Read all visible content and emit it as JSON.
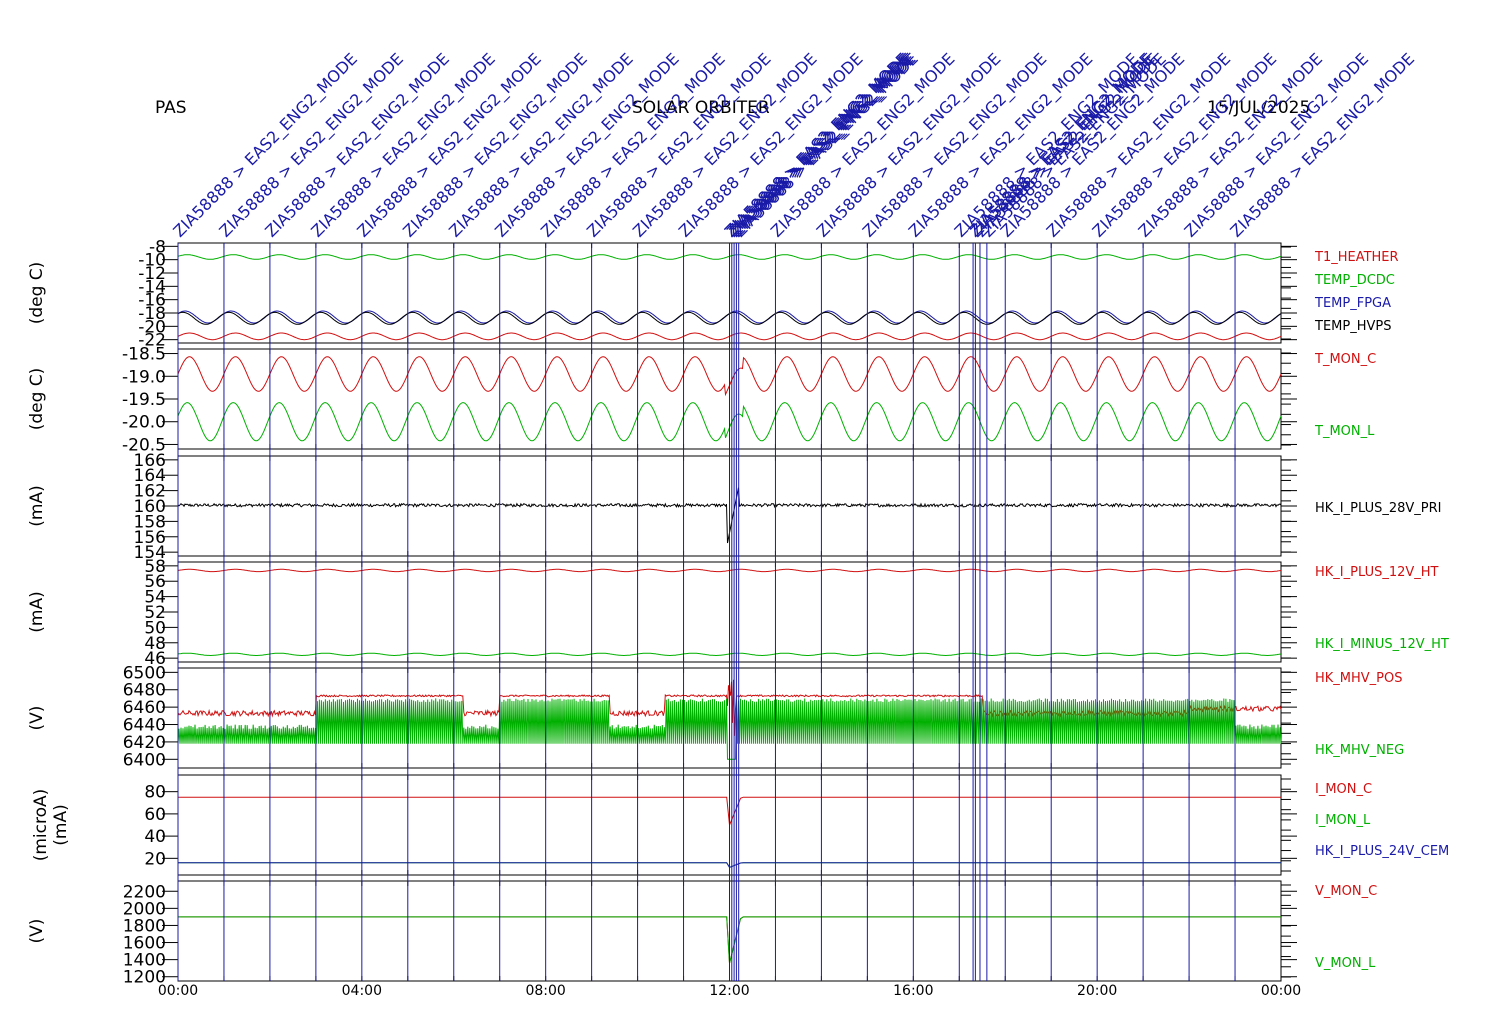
{
  "header": {
    "left": "PAS",
    "center": "SOLAR ORBITER",
    "right": "15/JUL/2025"
  },
  "colors": {
    "red": "#d01010",
    "green": "#00b000",
    "blue": "#1a1aa8",
    "black": "#000000",
    "event_line": "#1a1aa8"
  },
  "events": {
    "common_label": "ZIA58888 > EAS2_ENG2_MODE",
    "hours": [
      0,
      1,
      2,
      3,
      4,
      5,
      6,
      7,
      8,
      9,
      10,
      11,
      12,
      13,
      14,
      15,
      16,
      17,
      18,
      19,
      20,
      21,
      22,
      23
    ],
    "extra_hours": [
      12.0,
      12.05,
      12.1,
      12.15,
      12.2,
      17.3,
      17.35,
      17.45,
      17.6
    ]
  },
  "x_axis": {
    "ticks": [
      "00:00",
      "04:00",
      "08:00",
      "12:00",
      "16:00",
      "20:00",
      "00:00"
    ],
    "tick_hours": [
      0,
      4,
      8,
      12,
      16,
      20,
      24
    ]
  },
  "chart_data": [
    {
      "type": "line",
      "ylabel": "(deg C)",
      "ylim": [
        -22.5,
        -7.5
      ],
      "inverted": true,
      "yticks": [
        -8,
        -10,
        -12,
        -14,
        -16,
        -18,
        -20,
        -22
      ],
      "ytick_labels": [
        "-8",
        "-10",
        "-12",
        "-14",
        "-16",
        "-18",
        "-20",
        "-22"
      ],
      "series": [
        {
          "name": "T1_HEATHER",
          "color": "#d01010",
          "base": -21.5,
          "amp": 0.5,
          "period": 1.0
        },
        {
          "name": "TEMP_DCDC",
          "color": "#00b000",
          "base": -9.6,
          "amp": 0.35,
          "period": 1.0
        },
        {
          "name": "TEMP_FPGA",
          "color": "#1a1aa8",
          "base": -18.6,
          "amp": 0.9,
          "period": 1.0
        },
        {
          "name": "TEMP_HVPS",
          "color": "#000000",
          "base": -18.8,
          "amp": 0.9,
          "period": 1.0
        }
      ]
    },
    {
      "type": "line",
      "ylabel": "(deg C)",
      "ylim": [
        -20.6,
        -18.4
      ],
      "inverted": true,
      "yticks": [
        -18.5,
        -19.0,
        -19.5,
        -20.0,
        -20.5
      ],
      "ytick_labels": [
        "-18.5",
        "-19.0",
        "-19.5",
        "-20.0",
        "-20.5"
      ],
      "series": [
        {
          "name": "T_MON_C",
          "color": "#d01010",
          "base": -18.95,
          "amp": 0.38,
          "period": 1.0
        },
        {
          "name": "T_MON_L",
          "color": "#00b000",
          "base": -20.0,
          "amp": 0.42,
          "period": 1.0
        }
      ]
    },
    {
      "type": "line",
      "ylabel": "(mA)",
      "ylim": [
        153.5,
        166.5
      ],
      "yticks": [
        154,
        156,
        158,
        160,
        162,
        164,
        166
      ],
      "ytick_labels": [
        "154",
        "156",
        "158",
        "160",
        "162",
        "164",
        "166"
      ],
      "series": [
        {
          "name": "HK_I_PLUS_28V_PRI",
          "color": "#000000",
          "base": 160.1,
          "amp": 0.15,
          "period": 0.05,
          "spike": [
            155.0,
            162.5
          ]
        }
      ]
    },
    {
      "type": "line",
      "ylabel": "(mA)",
      "ylim": [
        45.5,
        58.5
      ],
      "yticks": [
        46,
        48,
        50,
        52,
        54,
        56,
        58
      ],
      "ytick_labels": [
        "46",
        "48",
        "50",
        "52",
        "54",
        "56",
        "58"
      ],
      "series": [
        {
          "name": "HK_I_PLUS_12V_HT",
          "color": "#d01010",
          "base": 57.4,
          "amp": 0.15,
          "period": 1.0
        },
        {
          "name": "HK_I_MINUS_12V_HT",
          "color": "#00b000",
          "base": 46.5,
          "amp": 0.15,
          "period": 1.0
        }
      ]
    },
    {
      "type": "line",
      "ylabel": "(V)",
      "ylim": [
        6390,
        6505
      ],
      "yticks": [
        6400,
        6420,
        6440,
        6460,
        6480,
        6500
      ],
      "ytick_labels": [
        "6400",
        "6420",
        "6440",
        "6460",
        "6480",
        "6500"
      ],
      "series": [
        {
          "name": "HK_MHV_POS",
          "color": "#d01010"
        },
        {
          "name": "HK_MHV_NEG",
          "color": "#00b000"
        }
      ]
    },
    {
      "type": "line",
      "ylabel": "(microA)",
      "ylabel2": "(mA)",
      "ylim": [
        5,
        95
      ],
      "yticks": [
        20,
        40,
        60,
        80
      ],
      "ytick_labels": [
        "20",
        "40",
        "60",
        "80"
      ],
      "series": [
        {
          "name": "I_MON_C",
          "color": "#d01010",
          "base": 75
        },
        {
          "name": "I_MON_L",
          "color": "#00b000",
          "base": 16
        },
        {
          "name": "HK_I_PLUS_24V_CEM",
          "color": "#1a1aa8",
          "base": 16
        }
      ]
    },
    {
      "type": "line",
      "ylabel": "(V)",
      "ylim": [
        1150,
        2320
      ],
      "yticks": [
        1200,
        1400,
        1600,
        1800,
        2000,
        2200
      ],
      "ytick_labels": [
        "1200",
        "1400",
        "1600",
        "1800",
        "2000",
        "2200"
      ],
      "series": [
        {
          "name": "V_MON_C",
          "color": "#d01010",
          "base": 1900
        },
        {
          "name": "V_MON_L",
          "color": "#00b000",
          "base": 1900
        }
      ]
    }
  ]
}
